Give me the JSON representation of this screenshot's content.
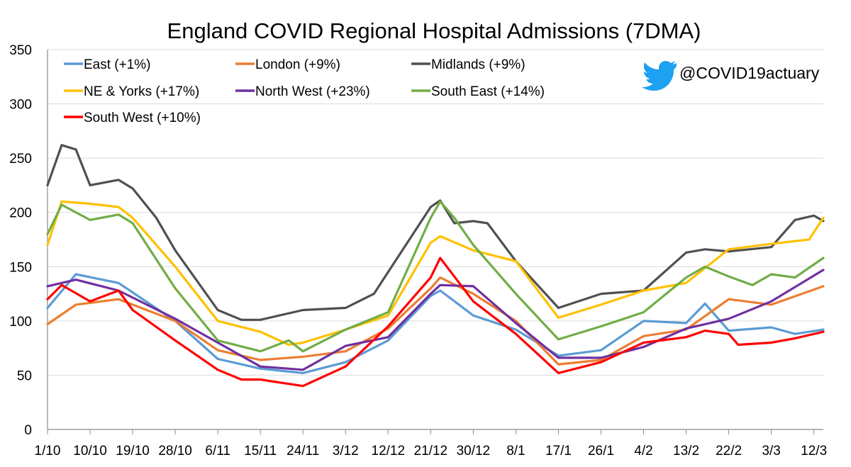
{
  "chart_data": {
    "type": "line",
    "title": "England COVID Regional Hospital Admissions (7DMA)",
    "handle": "@COVID19actuary",
    "xlabel": "",
    "ylabel": "",
    "ylim": [
      0,
      350
    ],
    "yticks": [
      0,
      50,
      100,
      150,
      200,
      250,
      300,
      350
    ],
    "x_start": "1/10",
    "x_end": "14/3",
    "x_tick_labels": [
      "1/10",
      "10/10",
      "19/10",
      "28/10",
      "6/11",
      "15/11",
      "24/11",
      "3/12",
      "12/12",
      "21/12",
      "30/12",
      "8/1",
      "17/1",
      "26/1",
      "4/2",
      "13/2",
      "22/2",
      "3/3",
      "12/3"
    ],
    "grid": "horizontal",
    "legend_position": "top-left",
    "series": [
      {
        "name": "East (+1%)",
        "color": "#5B9BD5",
        "points": [
          [
            "1/10",
            112
          ],
          [
            "7/10",
            143
          ],
          [
            "16/10",
            135
          ],
          [
            "28/10",
            100
          ],
          [
            "6/11",
            65
          ],
          [
            "15/11",
            56
          ],
          [
            "24/11",
            52
          ],
          [
            "3/12",
            62
          ],
          [
            "12/12",
            82
          ],
          [
            "21/12",
            123
          ],
          [
            "23/12",
            128
          ],
          [
            "30/12",
            105
          ],
          [
            "8/1",
            92
          ],
          [
            "17/1",
            68
          ],
          [
            "26/1",
            73
          ],
          [
            "4/2",
            100
          ],
          [
            "13/2",
            98
          ],
          [
            "17/2",
            116
          ],
          [
            "22/2",
            91
          ],
          [
            "3/3",
            94
          ],
          [
            "8/3",
            88
          ],
          [
            "14/3",
            92
          ]
        ]
      },
      {
        "name": "London (+9%)",
        "color": "#ED7D31",
        "points": [
          [
            "1/10",
            97
          ],
          [
            "7/10",
            115
          ],
          [
            "16/10",
            120
          ],
          [
            "28/10",
            100
          ],
          [
            "6/11",
            73
          ],
          [
            "15/11",
            64
          ],
          [
            "24/11",
            67
          ],
          [
            "3/12",
            72
          ],
          [
            "12/12",
            93
          ],
          [
            "21/12",
            130
          ],
          [
            "23/12",
            140
          ],
          [
            "30/12",
            125
          ],
          [
            "8/1",
            100
          ],
          [
            "17/1",
            60
          ],
          [
            "26/1",
            64
          ],
          [
            "4/2",
            86
          ],
          [
            "13/2",
            92
          ],
          [
            "22/2",
            120
          ],
          [
            "3/3",
            115
          ],
          [
            "14/3",
            132
          ]
        ]
      },
      {
        "name": "Midlands (+9%)",
        "color": "#505050",
        "points": [
          [
            "1/10",
            225
          ],
          [
            "4/10",
            262
          ],
          [
            "7/10",
            258
          ],
          [
            "10/10",
            225
          ],
          [
            "16/10",
            230
          ],
          [
            "19/10",
            222
          ],
          [
            "24/10",
            195
          ],
          [
            "28/10",
            165
          ],
          [
            "6/11",
            110
          ],
          [
            "11/11",
            101
          ],
          [
            "15/11",
            101
          ],
          [
            "24/11",
            110
          ],
          [
            "3/12",
            112
          ],
          [
            "9/12",
            125
          ],
          [
            "12/12",
            145
          ],
          [
            "21/12",
            205
          ],
          [
            "23/12",
            211
          ],
          [
            "26/12",
            190
          ],
          [
            "30/12",
            192
          ],
          [
            "2/1",
            190
          ],
          [
            "8/1",
            155
          ],
          [
            "17/1",
            112
          ],
          [
            "26/1",
            125
          ],
          [
            "4/2",
            128
          ],
          [
            "13/2",
            163
          ],
          [
            "17/2",
            166
          ],
          [
            "22/2",
            164
          ],
          [
            "3/3",
            168
          ],
          [
            "8/3",
            193
          ],
          [
            "12/3",
            197
          ],
          [
            "14/3",
            192
          ]
        ]
      },
      {
        "name": "NE & Yorks (+17%)",
        "color": "#FFC000",
        "points": [
          [
            "1/10",
            170
          ],
          [
            "4/10",
            210
          ],
          [
            "10/10",
            208
          ],
          [
            "16/10",
            205
          ],
          [
            "19/10",
            195
          ],
          [
            "28/10",
            150
          ],
          [
            "6/11",
            100
          ],
          [
            "15/11",
            90
          ],
          [
            "21/11",
            78
          ],
          [
            "24/11",
            80
          ],
          [
            "3/12",
            92
          ],
          [
            "12/12",
            105
          ],
          [
            "21/12",
            172
          ],
          [
            "23/12",
            178
          ],
          [
            "30/12",
            165
          ],
          [
            "8/1",
            155
          ],
          [
            "17/1",
            103
          ],
          [
            "26/1",
            115
          ],
          [
            "4/2",
            128
          ],
          [
            "13/2",
            135
          ],
          [
            "22/2",
            166
          ],
          [
            "3/3",
            171
          ],
          [
            "11/3",
            175
          ],
          [
            "14/3",
            195
          ]
        ]
      },
      {
        "name": "North West (+23%)",
        "color": "#7030A0",
        "points": [
          [
            "1/10",
            132
          ],
          [
            "7/10",
            138
          ],
          [
            "16/10",
            128
          ],
          [
            "28/10",
            102
          ],
          [
            "6/11",
            80
          ],
          [
            "15/11",
            58
          ],
          [
            "24/11",
            55
          ],
          [
            "3/12",
            77
          ],
          [
            "12/12",
            85
          ],
          [
            "21/12",
            125
          ],
          [
            "23/12",
            133
          ],
          [
            "30/12",
            132
          ],
          [
            "8/1",
            98
          ],
          [
            "17/1",
            66
          ],
          [
            "26/1",
            66
          ],
          [
            "4/2",
            76
          ],
          [
            "13/2",
            93
          ],
          [
            "22/2",
            102
          ],
          [
            "3/3",
            118
          ],
          [
            "14/3",
            147
          ]
        ]
      },
      {
        "name": "South East (+14%)",
        "color": "#70AD47",
        "points": [
          [
            "1/10",
            180
          ],
          [
            "4/10",
            207
          ],
          [
            "10/10",
            193
          ],
          [
            "16/10",
            198
          ],
          [
            "19/10",
            190
          ],
          [
            "28/10",
            130
          ],
          [
            "6/11",
            82
          ],
          [
            "15/11",
            72
          ],
          [
            "21/11",
            82
          ],
          [
            "24/11",
            72
          ],
          [
            "3/12",
            92
          ],
          [
            "12/12",
            108
          ],
          [
            "21/12",
            195
          ],
          [
            "23/12",
            210
          ],
          [
            "26/12",
            195
          ],
          [
            "30/12",
            170
          ],
          [
            "8/1",
            125
          ],
          [
            "17/1",
            83
          ],
          [
            "26/1",
            95
          ],
          [
            "4/2",
            108
          ],
          [
            "13/2",
            140
          ],
          [
            "17/2",
            150
          ],
          [
            "22/2",
            141
          ],
          [
            "27/2",
            133
          ],
          [
            "3/3",
            143
          ],
          [
            "8/3",
            140
          ],
          [
            "14/3",
            158
          ]
        ]
      },
      {
        "name": "South West (+10%)",
        "color": "#FF0000",
        "points": [
          [
            "1/10",
            120
          ],
          [
            "4/10",
            133
          ],
          [
            "10/10",
            118
          ],
          [
            "16/10",
            128
          ],
          [
            "19/10",
            110
          ],
          [
            "28/10",
            82
          ],
          [
            "6/11",
            55
          ],
          [
            "11/11",
            46
          ],
          [
            "15/11",
            46
          ],
          [
            "21/11",
            42
          ],
          [
            "24/11",
            40
          ],
          [
            "3/12",
            58
          ],
          [
            "12/12",
            95
          ],
          [
            "21/12",
            140
          ],
          [
            "23/12",
            158
          ],
          [
            "30/12",
            118
          ],
          [
            "8/1",
            88
          ],
          [
            "17/1",
            52
          ],
          [
            "26/1",
            62
          ],
          [
            "4/2",
            80
          ],
          [
            "13/2",
            85
          ],
          [
            "17/2",
            91
          ],
          [
            "22/2",
            88
          ],
          [
            "24/2",
            78
          ],
          [
            "3/3",
            80
          ],
          [
            "8/3",
            84
          ],
          [
            "14/3",
            90
          ]
        ]
      }
    ]
  }
}
